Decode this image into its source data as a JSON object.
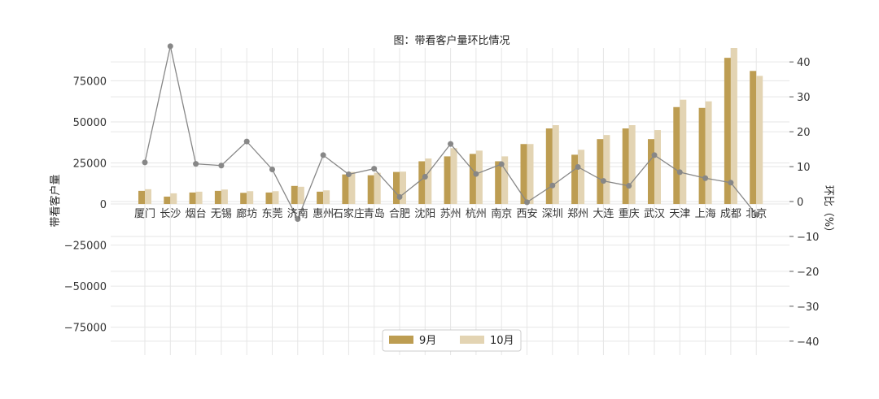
{
  "chart_data": {
    "type": "bar",
    "title": "图：带看客户量环比情况",
    "categories": [
      "厦门",
      "长沙",
      "烟台",
      "无锡",
      "廊坊",
      "东莞",
      "济南",
      "惠州",
      "石家庄",
      "青岛",
      "合肥",
      "沈阳",
      "苏州",
      "杭州",
      "南京",
      "西安",
      "深圳",
      "郑州",
      "大连",
      "重庆",
      "武汉",
      "天津",
      "上海",
      "成都",
      "北京"
    ],
    "series": [
      {
        "name": "9月",
        "color": "#bd9d52",
        "values": [
          8000,
          4500,
          7000,
          8000,
          6800,
          7000,
          11000,
          7500,
          18000,
          17500,
          19500,
          26000,
          29000,
          30500,
          26000,
          36500,
          46000,
          30000,
          39500,
          46000,
          39500,
          59000,
          58500,
          89000,
          81000
        ]
      },
      {
        "name": "10月",
        "color": "#e3d4b3",
        "values": [
          9000,
          6500,
          7500,
          8800,
          7800,
          7800,
          10500,
          8300,
          19500,
          19000,
          19700,
          27700,
          34000,
          32500,
          29000,
          36500,
          48000,
          33000,
          42000,
          48000,
          45000,
          63500,
          62500,
          95000,
          78000
        ]
      }
    ],
    "line": {
      "name": "环比",
      "color": "#878787",
      "values": [
        11.2,
        44.5,
        10.8,
        10.3,
        17.2,
        9.2,
        -5.0,
        13.3,
        7.8,
        9.4,
        1.3,
        7.1,
        16.5,
        7.9,
        10.7,
        -0.2,
        4.6,
        9.9,
        5.9,
        4.5,
        13.3,
        8.4,
        6.7,
        5.4,
        -3.7
      ]
    },
    "ylabel": "带看客户量",
    "y2label": "环比（%）",
    "ylim": [
      -92000,
      95000
    ],
    "y2lim": [
      -44,
      44
    ],
    "yticks": [
      -75000,
      -50000,
      -25000,
      0,
      25000,
      50000,
      75000
    ],
    "y2ticks": [
      -40,
      -30,
      -20,
      -10,
      0,
      10,
      20,
      30,
      40
    ],
    "grid": true,
    "legend_position": "bottom-center"
  }
}
